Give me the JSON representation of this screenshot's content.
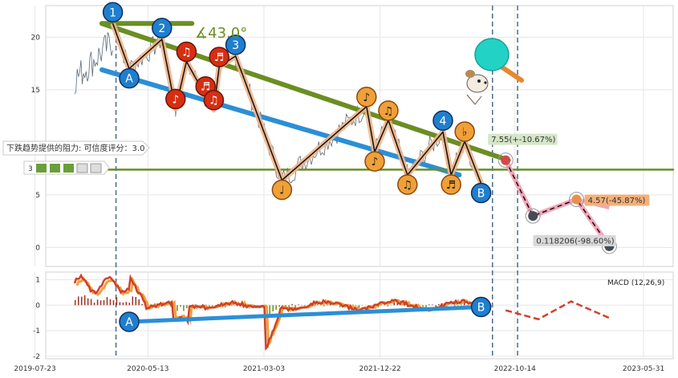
{
  "chart_data": [
    {
      "type": "line",
      "panel": "price",
      "ylim": [
        -1.8,
        23
      ],
      "yticks": [
        0,
        5,
        15,
        20
      ],
      "angle_label": "∡43.0°",
      "resistance_label": "下跌趋势提供的阻力: 可信度评分：3.0",
      "rating_number": "3",
      "trendlines": [
        {
          "name": "green-trend",
          "from": [
            0.0,
            21.3
          ],
          "to": [
            0.745,
            8.3
          ],
          "color": "#6b8e23"
        },
        {
          "name": "blue-trend",
          "from": [
            0.0,
            16.9
          ],
          "to": [
            0.655,
            6.9
          ],
          "color": "#2b8fd6"
        },
        {
          "name": "support-line",
          "from": [
            -0.1,
            7.4
          ],
          "to": [
            1.2,
            7.4
          ],
          "color": "#6b8e23"
        },
        {
          "name": "top-segment",
          "from": [
            0.0,
            21.3
          ],
          "to": [
            0.165,
            21.3
          ],
          "color": "#6b8e23"
        }
      ],
      "wave_points": [
        {
          "label": "1",
          "x": 0.02,
          "y": 21.3
        },
        {
          "label": "A",
          "x": 0.05,
          "y": 17.0
        },
        {
          "label": "2",
          "x": 0.11,
          "y": 19.8
        },
        {
          "label": "♪",
          "x": 0.135,
          "y": 13.2
        },
        {
          "label": "♫",
          "x": 0.155,
          "y": 17.7
        },
        {
          "label": "♬",
          "x": 0.19,
          "y": 14.4
        },
        {
          "label": "♫",
          "x": 0.205,
          "y": 13.1
        },
        {
          "label": "♬",
          "x": 0.215,
          "y": 17.2
        },
        {
          "label": "3",
          "x": 0.245,
          "y": 18.2
        },
        {
          "label": "♩",
          "x": 0.33,
          "y": 6.4
        },
        {
          "label": "♪",
          "x": 0.485,
          "y": 13.4
        },
        {
          "label": "♪",
          "x": 0.5,
          "y": 9.1
        },
        {
          "label": "♫",
          "x": 0.525,
          "y": 12.1
        },
        {
          "label": "♫",
          "x": 0.56,
          "y": 6.9
        },
        {
          "label": "4",
          "x": 0.625,
          "y": 11.0
        },
        {
          "label": "♬",
          "x": 0.64,
          "y": 6.9
        },
        {
          "label": "♭",
          "x": 0.665,
          "y": 10.1
        },
        {
          "label": "B",
          "x": 0.695,
          "y": 6.1
        }
      ],
      "projection": [
        {
          "x": 0.74,
          "y": 8.3,
          "label": "7.55(+-10.67%)"
        },
        {
          "x": 0.79,
          "y": 3.0,
          "label": ""
        },
        {
          "x": 0.87,
          "y": 4.57,
          "label": "4.57(-45.87%)"
        },
        {
          "x": 0.93,
          "y": 0.118206,
          "label": "0.118206(-98.60%)"
        }
      ]
    },
    {
      "type": "line",
      "panel": "macd",
      "title": "MACD (12,26,9)",
      "ylim": [
        -2.1,
        1.3
      ],
      "yticks": [
        -2,
        -1,
        0,
        1
      ],
      "xticks": [
        "2019-07-23",
        "2020-05-13",
        "2021-03-03",
        "2021-12-22",
        "2022-10-14",
        "2023-05-31"
      ],
      "trend_markers": [
        {
          "label": "A",
          "x": 0.05,
          "y": -0.65
        },
        {
          "label": "B",
          "x": 0.695,
          "y": -0.07
        }
      ]
    }
  ],
  "colors": {
    "green": "#6b8e23",
    "blue": "#2b8fd6",
    "orange": "#f0a038",
    "red": "#d62e12",
    "dark_blue_marker": "#1f7fcf",
    "pink": "#f4a6b8",
    "price": "#5a6a7a"
  },
  "icons": [
    "ping-pong-paddle-icon",
    "cartoon-dog-icon"
  ]
}
